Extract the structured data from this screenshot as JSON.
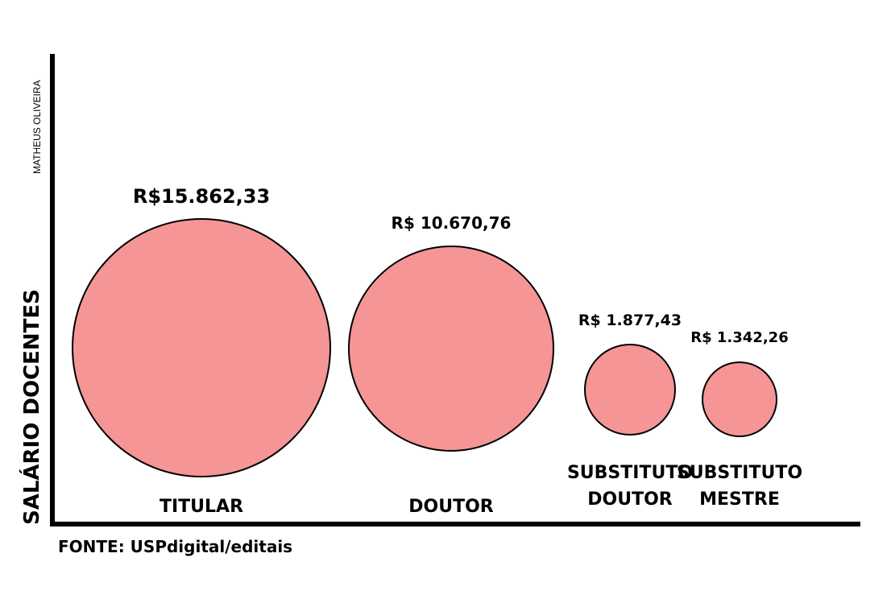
{
  "chart_data": {
    "type": "bubble",
    "ylabel": "SALÁRIO DOCENTES",
    "author": "MATHEUS OLIVEIRA",
    "source": "FONTE: USPdigital/editais",
    "colors": {
      "bubble_fill": "#f59596",
      "bubble_stroke": "#000000",
      "axis": "#000000"
    },
    "legend": "none",
    "grid": false,
    "series": [
      {
        "category_lines": [
          "TITULAR"
        ],
        "value": 15862.33,
        "value_label": "R$15.862,33"
      },
      {
        "category_lines": [
          "DOUTOR"
        ],
        "value": 10670.76,
        "value_label": "R$ 10.670,76"
      },
      {
        "category_lines": [
          "SUBSTITUTO",
          "DOUTOR"
        ],
        "value": 1877.43,
        "value_label": "R$ 1.877,43"
      },
      {
        "category_lines": [
          "SUBSTITUTO",
          "MESTRE"
        ],
        "value": 1342.26,
        "value_label": "R$ 1.342,26"
      }
    ]
  }
}
